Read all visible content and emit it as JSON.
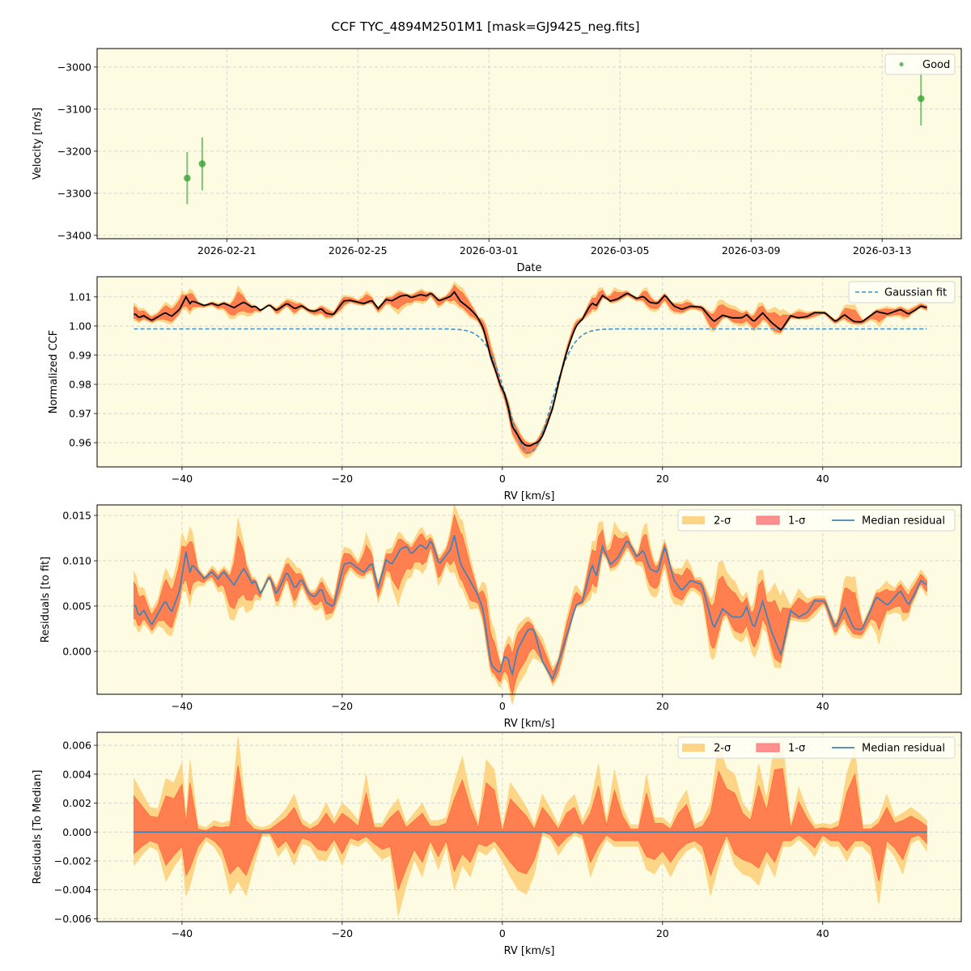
{
  "title": "CCF TYC_4894M2501M1 [mask=GJ9425_neg.fits]",
  "colors": {
    "background": "#fdfbe2",
    "good": "#2ca02c",
    "sigma2": "#fdd587",
    "sigma1": "#ff7f50",
    "median": "#4682b4",
    "gaussian": "#3f8fc4",
    "ccf": "#000000",
    "grid": "#cccccc"
  },
  "panels": [
    {
      "type": "scatter",
      "xlabel": "Date",
      "ylabel": "Velocity [m/s]",
      "xlim": [
        "2026-02-17T01:00",
        "2026-03-15T10:00"
      ],
      "ylim": [
        -3408,
        -2956
      ],
      "xticks": {
        "values": [
          "2026-02-21",
          "2026-02-25",
          "2026-03-01",
          "2026-03-05",
          "2026-03-09",
          "2026-03-13"
        ],
        "labels": [
          "2026-02-21",
          "2026-02-25",
          "2026-03-01",
          "2026-03-05",
          "2026-03-09",
          "2026-03-13"
        ]
      },
      "yticks": {
        "values": [
          -3000,
          -3100,
          -3200,
          -3300,
          -3400
        ],
        "labels": [
          "−3000",
          "−3100",
          "−3200",
          "−3300",
          "−3400"
        ]
      },
      "legend": {
        "position": "top-right",
        "entries": [
          "Good"
        ]
      },
      "series": [
        {
          "name": "Good",
          "points": [
            {
              "date": "2026-02-19T19:00",
              "rv": -3264,
              "err": 62
            },
            {
              "date": "2026-02-20T06:00",
              "rv": -3230,
              "err": 63
            },
            {
              "date": "2026-03-14T04:30",
              "rv": -3075,
              "err": 64
            }
          ]
        }
      ]
    },
    {
      "type": "line",
      "xlabel": "RV [km/s]",
      "ylabel": "Normalized CCF",
      "xlim": [
        -50.6,
        57.3
      ],
      "ylim": [
        0.9517,
        1.0169
      ],
      "xticks": {
        "values": [
          -40,
          -20,
          0,
          20,
          40
        ],
        "labels": [
          "−40",
          "−20",
          "0",
          "20",
          "40"
        ]
      },
      "yticks": {
        "values": [
          0.96,
          0.97,
          0.98,
          0.99,
          1.0,
          1.01
        ],
        "labels": [
          "0.96",
          "0.97",
          "0.98",
          "0.99",
          "1.00",
          "1.01"
        ]
      },
      "legend": {
        "position": "top-right",
        "entries": [
          "Gaussian fit"
        ]
      },
      "gaussian_fit": {
        "baseline": 0.999,
        "depth": 0.0425,
        "center": 3.4,
        "sigma": 2.7
      }
    },
    {
      "type": "area",
      "xlabel": "RV [km/s]",
      "ylabel": "Residuals [to fit]",
      "xlim": [
        -50.6,
        57.3
      ],
      "ylim": [
        -0.00473,
        0.01616
      ],
      "xticks": {
        "values": [
          -40,
          -20,
          0,
          20,
          40
        ],
        "labels": [
          "−40",
          "−20",
          "0",
          "20",
          "40"
        ]
      },
      "yticks": {
        "values": [
          0.0,
          0.005,
          0.01,
          0.015
        ],
        "labels": [
          "0.000",
          "0.005",
          "0.010",
          "0.015"
        ]
      },
      "legend": {
        "position": "top-right",
        "entries": [
          "2-σ",
          "1-σ",
          "Median residual"
        ]
      }
    },
    {
      "type": "area",
      "xlabel": "RV [km/s]",
      "ylabel": "Residuals [To Median]",
      "xlim": [
        -50.6,
        57.3
      ],
      "ylim": [
        -0.0062,
        0.0069
      ],
      "xticks": {
        "values": [
          -40,
          -20,
          0,
          20,
          40
        ],
        "labels": [
          "−40",
          "−20",
          "0",
          "20",
          "40"
        ]
      },
      "yticks": {
        "values": [
          0.006,
          0.004,
          0.002,
          0.0,
          -0.002,
          -0.004,
          -0.006
        ],
        "labels": [
          "0.006",
          "0.004",
          "0.002",
          "0.000",
          "−0.002",
          "−0.004",
          "−0.006"
        ]
      },
      "legend": {
        "position": "top-right",
        "entries": [
          "2-σ",
          "1-σ",
          "Median residual"
        ]
      }
    }
  ],
  "chart_data": {
    "type": "line",
    "units_residual": "1e-3",
    "median_residual": {
      "rv": [
        -45.8,
        -45.4,
        -44.8,
        -43.8,
        -42.1,
        -41.3,
        -40.3,
        -39.5,
        -39.0,
        -38.7,
        -37.2,
        -36.3,
        -35.5,
        -34.8,
        -33.5,
        -32.3,
        -31.2,
        -30.9,
        -30.2,
        -29.1,
        -28.2,
        -26.9,
        -25.9,
        -25.1,
        -24.1,
        -23.4,
        -22.6,
        -22.0,
        -21.1,
        -19.8,
        -19.0,
        -17.6,
        -17.3,
        -16.3,
        -15.5,
        -14.5,
        -13.8,
        -12.7,
        -11.9,
        -11.4,
        -10.2,
        -9.5,
        -8.9,
        -7.9,
        -6.5,
        -6.0,
        -5.2,
        -4.1,
        -3.1,
        -2.4,
        -1.4,
        -0.3,
        0.2,
        0.7,
        1.2,
        1.9,
        3.2,
        3.9,
        5.0,
        6.3,
        7.5,
        9.2,
        10.0,
        11.2,
        11.7,
        12.5,
        13.5,
        14.4,
        15.6,
        16.8,
        17.6,
        18.4,
        19.4,
        20.3,
        21.4,
        22.4,
        23.5,
        24.9,
        26.4,
        27.5,
        28.7,
        29.9,
        30.5,
        31.4,
        32.5,
        33.6,
        34.8,
        36.0,
        37.0,
        38.1,
        39.0,
        40.3,
        41.6,
        42.7,
        43.9,
        44.9,
        46.7,
        48.1,
        49.7,
        50.7,
        51.5,
        52.3,
        52.8
      ],
      "value": [
        5.1,
        3.8,
        4.6,
        2.9,
        5.6,
        4.3,
        6.7,
        11.0,
        8.7,
        9.6,
        8.0,
        8.8,
        8.0,
        8.8,
        7.3,
        9.2,
        7.4,
        7.9,
        6.3,
        8.3,
        6.3,
        8.8,
        6.9,
        8.0,
        6.3,
        6.0,
        7.0,
        5.4,
        4.9,
        9.6,
        9.8,
        8.9,
        8.7,
        9.8,
        7.0,
        10.1,
        9.6,
        11.3,
        11.6,
        10.7,
        11.8,
        11.3,
        12.3,
        9.6,
        11.2,
        12.8,
        9.6,
        7.9,
        6.3,
        4.6,
        -1.5,
        -2.4,
        -0.6,
        -0.7,
        -2.7,
        0.2,
        2.4,
        2.5,
        -1.1,
        -3.1,
        0.2,
        5.1,
        5.5,
        9.6,
        8.2,
        11.6,
        9.6,
        10.3,
        12.3,
        10.4,
        11.2,
        9.1,
        8.7,
        11.6,
        7.9,
        6.7,
        7.8,
        7.4,
        2.5,
        4.7,
        3.8,
        3.8,
        4.9,
        2.5,
        5.5,
        2.2,
        -0.4,
        4.5,
        3.8,
        4.3,
        5.6,
        5.5,
        2.5,
        4.9,
        2.5,
        2.4,
        6.0,
        5.1,
        6.7,
        5.1,
        6.4,
        7.9,
        7.4
      ]
    },
    "bands_to_median": {
      "rv": [
        -46,
        -45,
        -44,
        -43,
        -42,
        -41,
        -40,
        -39.5,
        -39,
        -38,
        -37,
        -36,
        -35,
        -34,
        -33,
        -32,
        -31,
        -30,
        -29,
        -28,
        -27,
        -26,
        -25,
        -24,
        -23,
        -22,
        -21,
        -20,
        -19,
        -18,
        -17,
        -16,
        -15,
        -14,
        -13,
        -12,
        -11,
        -10,
        -9,
        -8,
        -7,
        -6,
        -5,
        -4,
        -3,
        -2,
        -1,
        0,
        1,
        2,
        3,
        4,
        5,
        6,
        7,
        8,
        9,
        10,
        11,
        12,
        13,
        14,
        15,
        16,
        17,
        18,
        19,
        20,
        21,
        22,
        23,
        24,
        25,
        26,
        27,
        28,
        29,
        30,
        31,
        32,
        33,
        34,
        35,
        36,
        37,
        38,
        39,
        40,
        41,
        42,
        43,
        44,
        45,
        46,
        47,
        48,
        49,
        50,
        51,
        52,
        53
      ],
      "upper_1sigma": [
        2.5,
        1.8,
        1.1,
        1.0,
        2.5,
        2.3,
        3.3,
        0.5,
        3.4,
        0.2,
        0.1,
        0.4,
        0.3,
        0.4,
        4.6,
        0.8,
        0.2,
        0.1,
        0.2,
        0.6,
        1.0,
        1.7,
        0.5,
        0.2,
        0.5,
        1.3,
        0.5,
        1.3,
        0.9,
        0.4,
        2.7,
        0.3,
        0.3,
        1.0,
        1.5,
        0.3,
        0.8,
        1.3,
        0.4,
        0.4,
        0.6,
        2.3,
        3.6,
        1.7,
        0.3,
        3.4,
        2.9,
        0.0,
        2.3,
        1.7,
        1.1,
        0.2,
        1.7,
        1.0,
        0.2,
        1.3,
        1.7,
        0.4,
        1.3,
        3.2,
        0.4,
        2.9,
        1.1,
        0.2,
        0.2,
        2.7,
        0.6,
        0.6,
        0.2,
        1.3,
        1.9,
        0.2,
        0.4,
        1.3,
        4.2,
        3.0,
        2.7,
        1.3,
        0.8,
        3.2,
        1.5,
        4.3,
        4.4,
        0.2,
        2.1,
        1.0,
        0.2,
        0.3,
        0.2,
        0.4,
        2.7,
        4.0,
        0.2,
        0.2,
        0.6,
        1.7,
        0.6,
        0.8,
        1.1,
        0.8,
        0.4
      ],
      "lower_1sigma": [
        -1.5,
        -1.0,
        -0.6,
        -0.8,
        -2.3,
        -1.6,
        -1.0,
        -3.0,
        -2.5,
        -1.0,
        -0.3,
        -0.6,
        -1.2,
        -2.9,
        -2.3,
        -3.0,
        -1.5,
        -0.1,
        -0.1,
        -1.1,
        -0.6,
        -1.5,
        -0.4,
        -0.6,
        -1.2,
        -1.3,
        -0.5,
        -1.5,
        -0.4,
        -0.6,
        -0.3,
        -0.8,
        -1.2,
        -1.0,
        -4.0,
        -2.5,
        -1.2,
        -2.1,
        -0.6,
        -1.7,
        -0.6,
        -2.7,
        -1.5,
        -2.1,
        -0.8,
        -1.0,
        -0.6,
        -1.3,
        -2.1,
        -2.7,
        -2.9,
        -1.9,
        0.0,
        -0.2,
        -1.0,
        -0.4,
        0.0,
        -0.2,
        -2.1,
        -1.0,
        -0.2,
        -0.6,
        -0.6,
        -0.6,
        -0.6,
        -1.7,
        -1.9,
        -1.3,
        -2.1,
        -1.3,
        -0.8,
        -0.6,
        -1.0,
        -3.0,
        -1.5,
        -0.2,
        -1.5,
        -1.9,
        -2.1,
        -2.5,
        -1.3,
        -2.1,
        -0.6,
        -0.6,
        -0.2,
        -0.6,
        -1.1,
        -0.2,
        -0.6,
        -0.6,
        -1.3,
        -0.6,
        -0.6,
        -1.0,
        -3.4,
        -0.6,
        -1.1,
        -1.9,
        -0.4,
        -0.2,
        -0.8
      ],
      "upper_2sigma": [
        3.7,
        2.7,
        1.7,
        1.6,
        3.7,
        3.4,
        4.8,
        0.9,
        5.0,
        0.5,
        0.3,
        0.8,
        0.6,
        0.8,
        6.6,
        1.3,
        0.5,
        0.3,
        0.5,
        1.0,
        1.6,
        2.6,
        0.9,
        0.5,
        0.9,
        2.0,
        0.9,
        2.0,
        1.5,
        0.8,
        4.0,
        0.6,
        0.6,
        1.6,
        2.3,
        0.6,
        1.3,
        2.0,
        0.8,
        0.8,
        1.0,
        3.4,
        5.2,
        2.6,
        0.6,
        5.0,
        4.3,
        0.2,
        3.4,
        2.6,
        1.7,
        0.5,
        2.6,
        1.6,
        0.5,
        2.0,
        2.6,
        0.8,
        2.0,
        4.7,
        0.8,
        4.3,
        1.7,
        0.5,
        0.5,
        4.0,
        1.0,
        1.0,
        0.5,
        2.0,
        2.9,
        0.5,
        0.8,
        2.0,
        6.1,
        4.4,
        4.0,
        2.0,
        1.3,
        4.7,
        2.3,
        6.2,
        6.4,
        0.5,
        3.1,
        1.6,
        0.5,
        0.6,
        0.5,
        0.8,
        4.0,
        5.8,
        0.5,
        0.5,
        1.0,
        2.6,
        1.0,
        1.3,
        1.7,
        1.3,
        0.8
      ],
      "lower_2sigma": [
        -2.3,
        -1.6,
        -1.0,
        -1.3,
        -3.4,
        -2.4,
        -1.6,
        -4.4,
        -3.7,
        -1.6,
        -0.6,
        -1.0,
        -1.9,
        -4.3,
        -3.4,
        -4.4,
        -2.3,
        -0.3,
        -0.3,
        -1.7,
        -1.0,
        -2.3,
        -0.8,
        -1.0,
        -1.9,
        -2.0,
        -0.9,
        -2.3,
        -0.8,
        -1.0,
        -0.6,
        -1.3,
        -1.9,
        -1.6,
        -5.8,
        -3.7,
        -1.9,
        -3.1,
        -1.0,
        -2.6,
        -1.0,
        -4.0,
        -2.3,
        -3.1,
        -1.3,
        -1.6,
        -1.0,
        -2.0,
        -3.1,
        -4.0,
        -4.3,
        -2.9,
        -0.2,
        -0.5,
        -1.6,
        -0.8,
        -0.2,
        -0.5,
        -3.1,
        -1.6,
        -0.5,
        -1.0,
        -1.0,
        -1.0,
        -1.0,
        -2.6,
        -2.9,
        -2.0,
        -3.1,
        -2.0,
        -1.3,
        -1.0,
        -1.6,
        -4.4,
        -2.3,
        -0.5,
        -2.3,
        -2.9,
        -3.1,
        -3.7,
        -2.0,
        -3.1,
        -1.0,
        -1.0,
        -0.5,
        -1.0,
        -1.7,
        -0.5,
        -1.0,
        -1.0,
        -2.0,
        -1.0,
        -1.0,
        -1.6,
        -5.0,
        -1.0,
        -1.7,
        -2.9,
        -0.8,
        -0.5,
        -1.3
      ]
    }
  }
}
